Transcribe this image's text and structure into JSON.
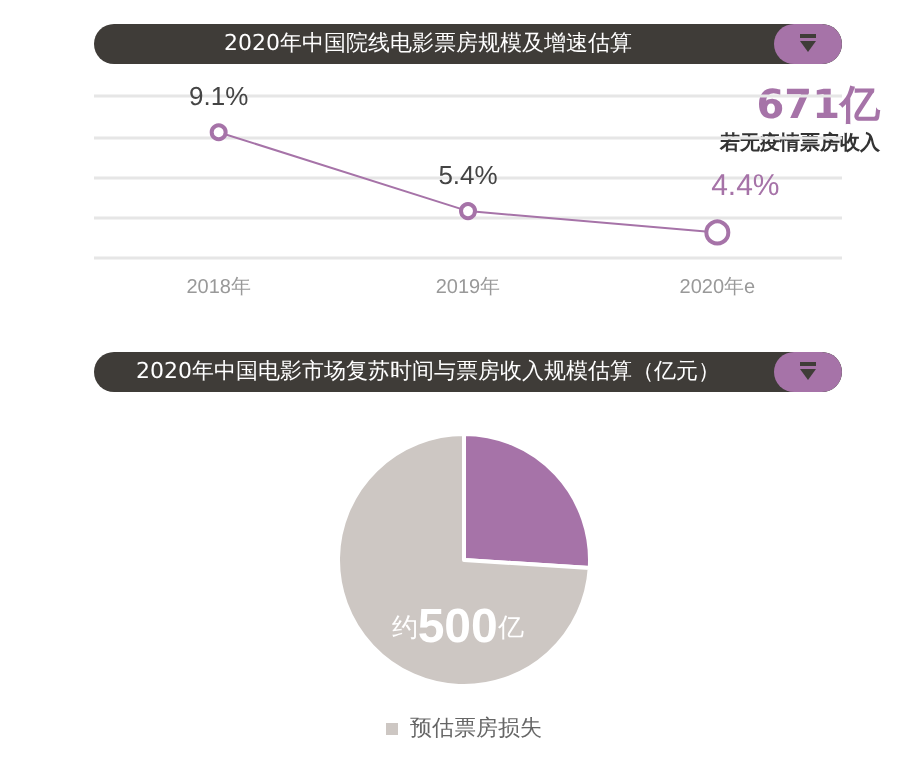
{
  "chart_data": [
    {
      "type": "line",
      "title": "2020年中国院线电影票房规模及增速估算",
      "categories": [
        "2018年",
        "2019年",
        "2020年e"
      ],
      "series": [
        {
          "color": "#a673a8",
          "values": [
            9.1,
            5.4,
            4.4
          ],
          "value_labels": [
            "9.1%",
            "5.4%",
            "4.4%"
          ]
        }
      ],
      "ylim": [
        3.2,
        10.8
      ],
      "yticks": [
        {
          "value": 3.2,
          "label": null
        },
        {
          "value": 5.1,
          "label": null
        },
        {
          "value": 7.0,
          "label": null
        },
        {
          "value": 8.9,
          "label": null
        },
        {
          "value": 10.8,
          "label": null
        }
      ],
      "grid": "y",
      "tick_labels": "x",
      "marker": "circle",
      "line_style": "solid",
      "annotations": [
        "671亿",
        "若无疫情票房收入"
      ]
    },
    {
      "type": "pie",
      "title": "2020年中国电影市场复苏时间与票房收入规模估算（亿元）",
      "categories": [
        null,
        "预估票房损失"
      ],
      "values": [
        26,
        74
      ],
      "colors": [
        "#a673a8",
        "#cdc7c3"
      ],
      "value_labels": [
        null,
        "约500亿"
      ],
      "legend": "bottom"
    }
  ]
}
